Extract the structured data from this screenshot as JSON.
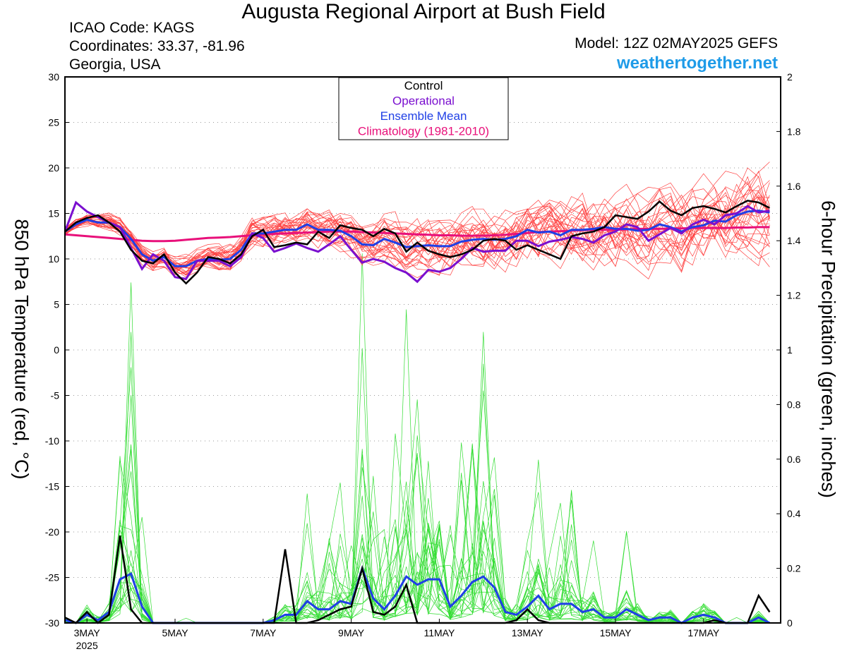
{
  "header": {
    "title": "Augusta Regional Airport at Bush Field",
    "icao": "ICAO Code: KAGS",
    "coordinates": "Coordinates: 33.37, -81.96",
    "region": "Georgia, USA",
    "model": "Model: 12Z 02MAY2025 GEFS",
    "site": "weathertogether.net"
  },
  "colors": {
    "control": "#000000",
    "operational": "#7a0fcf",
    "ensemble_mean": "#1f3fe6",
    "climatology": "#e8107a",
    "members_temp": "#ff4040",
    "members_precip": "#33dd33"
  },
  "chart_data": {
    "type": "line",
    "xlabel": "",
    "ylabel": "850 hPa Temperature (red, °C)",
    "y2label": "6-hour Precipitation (green, inches)",
    "xlim": [
      0,
      65
    ],
    "ylim": [
      -30,
      30
    ],
    "y2lim": [
      0,
      2
    ],
    "x_unit": "6-hour steps from 12Z 02MAY2025",
    "x_ticks": [
      {
        "x": 2,
        "label": "3MAY",
        "sub": "2025"
      },
      {
        "x": 10,
        "label": "5MAY"
      },
      {
        "x": 18,
        "label": "7MAY"
      },
      {
        "x": 26,
        "label": "9MAY"
      },
      {
        "x": 34,
        "label": "11MAY"
      },
      {
        "x": 42,
        "label": "13MAY"
      },
      {
        "x": 50,
        "label": "15MAY"
      },
      {
        "x": 58,
        "label": "17MAY"
      }
    ],
    "y_ticks": [
      30,
      25,
      20,
      15,
      10,
      5,
      0,
      -5,
      -10,
      -15,
      -20,
      -25,
      -30
    ],
    "y2_ticks": [
      "2",
      "1.8",
      "1.6",
      "1.4",
      "1.2",
      "1",
      "0.8",
      "0.6",
      "0.4",
      "0.2",
      "0"
    ],
    "legend": {
      "placement": "top-center",
      "entries": [
        "Control",
        "Operational",
        "Ensemble Mean",
        "Climatology (1981-2010)"
      ]
    },
    "grid": "horizontal dotted",
    "temperature": {
      "control": [
        13.0,
        14.0,
        14.5,
        14.8,
        14.0,
        13.0,
        11.0,
        9.8,
        9.5,
        10.5,
        8.5,
        7.3,
        8.5,
        10.2,
        10.0,
        9.5,
        10.5,
        12.5,
        13.2,
        11.3,
        11.5,
        11.8,
        11.6,
        13.0,
        12.3,
        13.7,
        13.4,
        13.2,
        12.5,
        13.3,
        12.8,
        10.8,
        11.8,
        10.9,
        10.5,
        10.2,
        10.5,
        11.0,
        12.0,
        12.2,
        12.0,
        11.0,
        11.5,
        11.0,
        10.5,
        10.0,
        12.5,
        12.8,
        13.0,
        13.5,
        14.8,
        14.6,
        14.4,
        15.2,
        16.3,
        15.3,
        14.8,
        15.6,
        15.8,
        15.5,
        15.1,
        15.8,
        16.4,
        16.2,
        15.6
      ],
      "operational": [
        13.0,
        16.2,
        15.2,
        14.6,
        14.0,
        13.5,
        11.2,
        8.9,
        10.5,
        9.8,
        8.0,
        7.8,
        9.8,
        9.8,
        9.8,
        9.2,
        10.2,
        12.8,
        12.3,
        10.8,
        11.2,
        11.7,
        11.2,
        10.8,
        11.6,
        12.5,
        11.0,
        9.6,
        10.0,
        9.7,
        9.0,
        8.5,
        7.5,
        8.8,
        8.6,
        9.0,
        10.0,
        11.2,
        10.8,
        10.9,
        10.9,
        12.0,
        12.0,
        11.4,
        11.9,
        12.1,
        12.4,
        12.2,
        11.8,
        12.6,
        13.0,
        13.8,
        13.5,
        12.0,
        12.7,
        13.4,
        12.8,
        13.8,
        14.3,
        13.8,
        14.8,
        15.0,
        15.8,
        15.1,
        15.3
      ],
      "mean": [
        13.0,
        13.8,
        14.3,
        14.0,
        14.0,
        13.5,
        12.2,
        10.5,
        9.8,
        10.2,
        9.2,
        9.2,
        9.8,
        10.0,
        9.9,
        10.0,
        11.0,
        12.8,
        12.8,
        13.0,
        13.2,
        13.2,
        13.8,
        13.2,
        13.2,
        13.1,
        12.5,
        11.6,
        11.5,
        12.2,
        11.8,
        11.3,
        11.4,
        11.5,
        11.4,
        11.4,
        11.9,
        12.1,
        12.2,
        12.1,
        12.2,
        12.5,
        13.2,
        12.9,
        13.0,
        12.6,
        13.2,
        13.2,
        13.3,
        13.5,
        13.3,
        13.3,
        13.1,
        13.2,
        13.8,
        13.5,
        13.0,
        13.5,
        13.7,
        14.2,
        14.1,
        14.8,
        15.2,
        15.3,
        15.1
      ],
      "climatology": [
        12.7,
        12.6,
        12.5,
        12.4,
        12.3,
        12.2,
        12.1,
        12.0,
        11.95,
        11.95,
        12.0,
        12.1,
        12.2,
        12.3,
        12.35,
        12.4,
        12.5,
        12.6,
        12.7,
        12.75,
        12.8,
        12.85,
        12.9,
        12.95,
        13.0,
        13.0,
        13.0,
        12.95,
        12.9,
        12.85,
        12.8,
        12.75,
        12.7,
        12.65,
        12.6,
        12.6,
        12.55,
        12.55,
        12.55,
        12.6,
        12.65,
        12.75,
        12.85,
        12.95,
        13.0,
        13.05,
        13.1,
        13.15,
        13.2,
        13.2,
        13.2,
        13.25,
        13.3,
        13.3,
        13.3,
        13.35,
        13.35,
        13.4,
        13.4,
        13.4,
        13.4,
        13.45,
        13.45,
        13.5,
        13.5
      ]
    },
    "precipitation": {
      "control": [
        0.02,
        0.0,
        0.04,
        0.0,
        0.03,
        0.32,
        0.05,
        0.0,
        0.0,
        0.0,
        0.0,
        0.0,
        0.0,
        0.0,
        0.0,
        0.0,
        0.0,
        0.0,
        0.0,
        0.0,
        0.27,
        0.0,
        0.0,
        0.01,
        0.03,
        0.05,
        0.06,
        0.2,
        0.04,
        0.03,
        0.06,
        0.14,
        0.0,
        0.0,
        0.0,
        0.0,
        0.0,
        0.0,
        0.0,
        0.0,
        0.0,
        0.01,
        0.05,
        0.01,
        0.0,
        0.0,
        0.0,
        0.0,
        0.0,
        0.0,
        0.0,
        0.0,
        0.0,
        0.0,
        0.0,
        0.0,
        0.0,
        0.0,
        0.0,
        0.01,
        0.0,
        0.0,
        0.0,
        0.1,
        0.04
      ],
      "mean": [
        0.01,
        0.0,
        0.03,
        0.01,
        0.04,
        0.16,
        0.18,
        0.06,
        0.0,
        0.0,
        0.0,
        0.0,
        0.0,
        0.0,
        0.0,
        0.0,
        0.0,
        0.0,
        0.0,
        0.01,
        0.03,
        0.03,
        0.08,
        0.05,
        0.05,
        0.08,
        0.07,
        0.2,
        0.09,
        0.05,
        0.1,
        0.17,
        0.14,
        0.16,
        0.16,
        0.06,
        0.1,
        0.15,
        0.17,
        0.13,
        0.04,
        0.03,
        0.06,
        0.1,
        0.05,
        0.07,
        0.07,
        0.04,
        0.05,
        0.02,
        0.02,
        0.05,
        0.03,
        0.01,
        0.02,
        0.02,
        0.0,
        0.02,
        0.03,
        0.02,
        0.0,
        0.0,
        0.0,
        0.02,
        0.0
      ]
    }
  }
}
